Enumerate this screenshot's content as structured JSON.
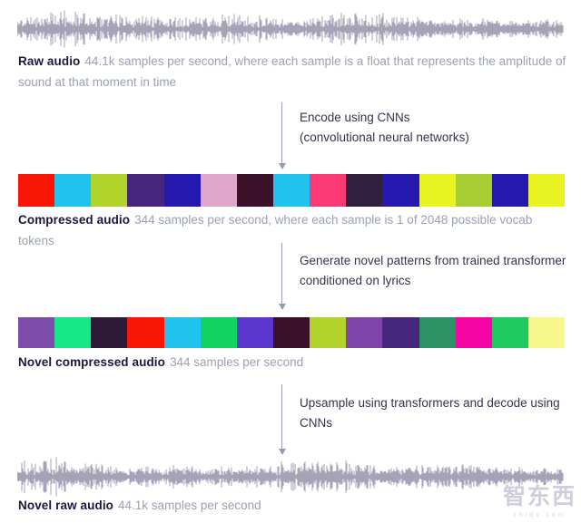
{
  "colors": {
    "label": "#191940",
    "description": "#9ba1b3",
    "arrow": "#9b99af",
    "step_text": "#33334f",
    "waveform": "#9b99af"
  },
  "sections": {
    "raw_audio": {
      "label": "Raw audio",
      "description": "44.1k samples per second, where each sample is a float that represents the amplitude of sound at that moment in time"
    },
    "compressed_audio": {
      "label": "Compressed audio",
      "description": "344 samples per second, where each sample is 1 of 2048 possible vocab tokens"
    },
    "novel_compressed_audio": {
      "label": "Novel compressed audio",
      "description": "344 samples per second"
    },
    "novel_raw_audio": {
      "label": "Novel raw audio",
      "description": "44.1k samples per second"
    }
  },
  "steps": [
    {
      "lines": [
        "Encode using CNNs",
        "(convolutional neural networks)"
      ]
    },
    {
      "lines": [
        "Generate novel patterns from trained transformer",
        "conditioned on lyrics"
      ]
    },
    {
      "lines": [
        "Upsample using transformers and decode using",
        "CNNs"
      ]
    }
  ],
  "strips": [
    {
      "name": "compressed-tokens",
      "colors": [
        "#f91505",
        "#20c3ee",
        "#b1d32b",
        "#46277d",
        "#2418ae",
        "#e0a5ca",
        "#3a1129",
        "#20c3ee",
        "#fb3a75",
        "#302040",
        "#2418ae",
        "#e9f322",
        "#a9ce34",
        "#2418ae",
        "#e9f322"
      ]
    },
    {
      "name": "novel-compressed-tokens",
      "colors": [
        "#7d4bab",
        "#16e888",
        "#2d1a39",
        "#f91505",
        "#20c3ee",
        "#10d362",
        "#5b36cf",
        "#3a1129",
        "#b1d32b",
        "#8045ad",
        "#45277e",
        "#2e9166",
        "#f504a6",
        "#1fc95e",
        "#f6f88b"
      ]
    }
  ],
  "watermark": {
    "text": "智东西",
    "subtext": "zhidx.com"
  }
}
